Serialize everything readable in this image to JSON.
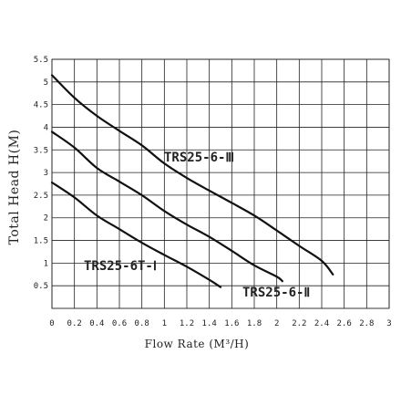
{
  "chart_data": {
    "type": "line",
    "xlabel": "Flow Rate (M³/H)",
    "ylabel": "Total Head H(M)",
    "xlim": [
      0,
      3
    ],
    "ylim": [
      0,
      5.5
    ],
    "x_ticks": [
      "0",
      "0.2",
      "0.4",
      "0.6",
      "0.8",
      "1",
      "1.2",
      "1.4",
      "1.6",
      "1.8",
      "2",
      "2.2",
      "2.4",
      "2.6",
      "2.8",
      "3"
    ],
    "y_ticks": [
      "0.5",
      "1",
      "1.5",
      "2",
      "2.5",
      "3",
      "3.5",
      "4",
      "4.5",
      "5",
      "5.5"
    ],
    "grid": true,
    "series": [
      {
        "name": "TRS25-6-Ⅲ",
        "points": [
          [
            0,
            5.15
          ],
          [
            0.2,
            4.65
          ],
          [
            0.4,
            4.25
          ],
          [
            0.6,
            3.92
          ],
          [
            0.8,
            3.6
          ],
          [
            1.0,
            3.2
          ],
          [
            1.2,
            2.88
          ],
          [
            1.4,
            2.6
          ],
          [
            1.6,
            2.33
          ],
          [
            1.8,
            2.05
          ],
          [
            2.0,
            1.72
          ],
          [
            2.2,
            1.38
          ],
          [
            2.4,
            1.05
          ],
          [
            2.5,
            0.75
          ]
        ]
      },
      {
        "name": "TRS25-6-Ⅱ",
        "points": [
          [
            0,
            3.9
          ],
          [
            0.2,
            3.55
          ],
          [
            0.4,
            3.1
          ],
          [
            0.6,
            2.8
          ],
          [
            0.8,
            2.5
          ],
          [
            1.0,
            2.15
          ],
          [
            1.2,
            1.85
          ],
          [
            1.4,
            1.58
          ],
          [
            1.6,
            1.27
          ],
          [
            1.8,
            0.95
          ],
          [
            2.0,
            0.7
          ],
          [
            2.05,
            0.6
          ]
        ]
      },
      {
        "name": "TRS25-6T-Ⅰ",
        "points": [
          [
            0,
            2.78
          ],
          [
            0.2,
            2.45
          ],
          [
            0.4,
            2.05
          ],
          [
            0.6,
            1.75
          ],
          [
            0.8,
            1.45
          ],
          [
            1.0,
            1.18
          ],
          [
            1.2,
            0.92
          ],
          [
            1.4,
            0.63
          ],
          [
            1.5,
            0.47
          ]
        ]
      }
    ]
  }
}
